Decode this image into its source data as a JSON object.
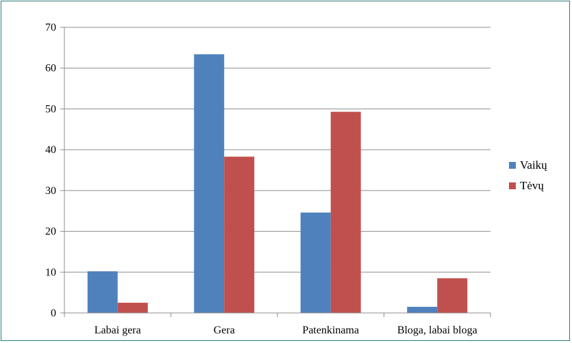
{
  "chart_data": {
    "type": "bar",
    "categories": [
      "Labai gera",
      "Gera",
      "Patenkinama",
      "Bloga, labai bloga"
    ],
    "series": [
      {
        "name": "Vaikų",
        "color": "#4F81BD",
        "values": [
          10.2,
          63.4,
          24.6,
          1.5
        ]
      },
      {
        "name": "Tėvų",
        "color": "#C0504D",
        "values": [
          2.5,
          38.3,
          49.3,
          8.5
        ]
      }
    ],
    "title": "",
    "xlabel": "",
    "ylabel": "",
    "ylim": [
      0,
      70
    ],
    "yticks": [
      0,
      10,
      20,
      30,
      40,
      50,
      60,
      70
    ],
    "grid": true,
    "legend_position": "right"
  }
}
